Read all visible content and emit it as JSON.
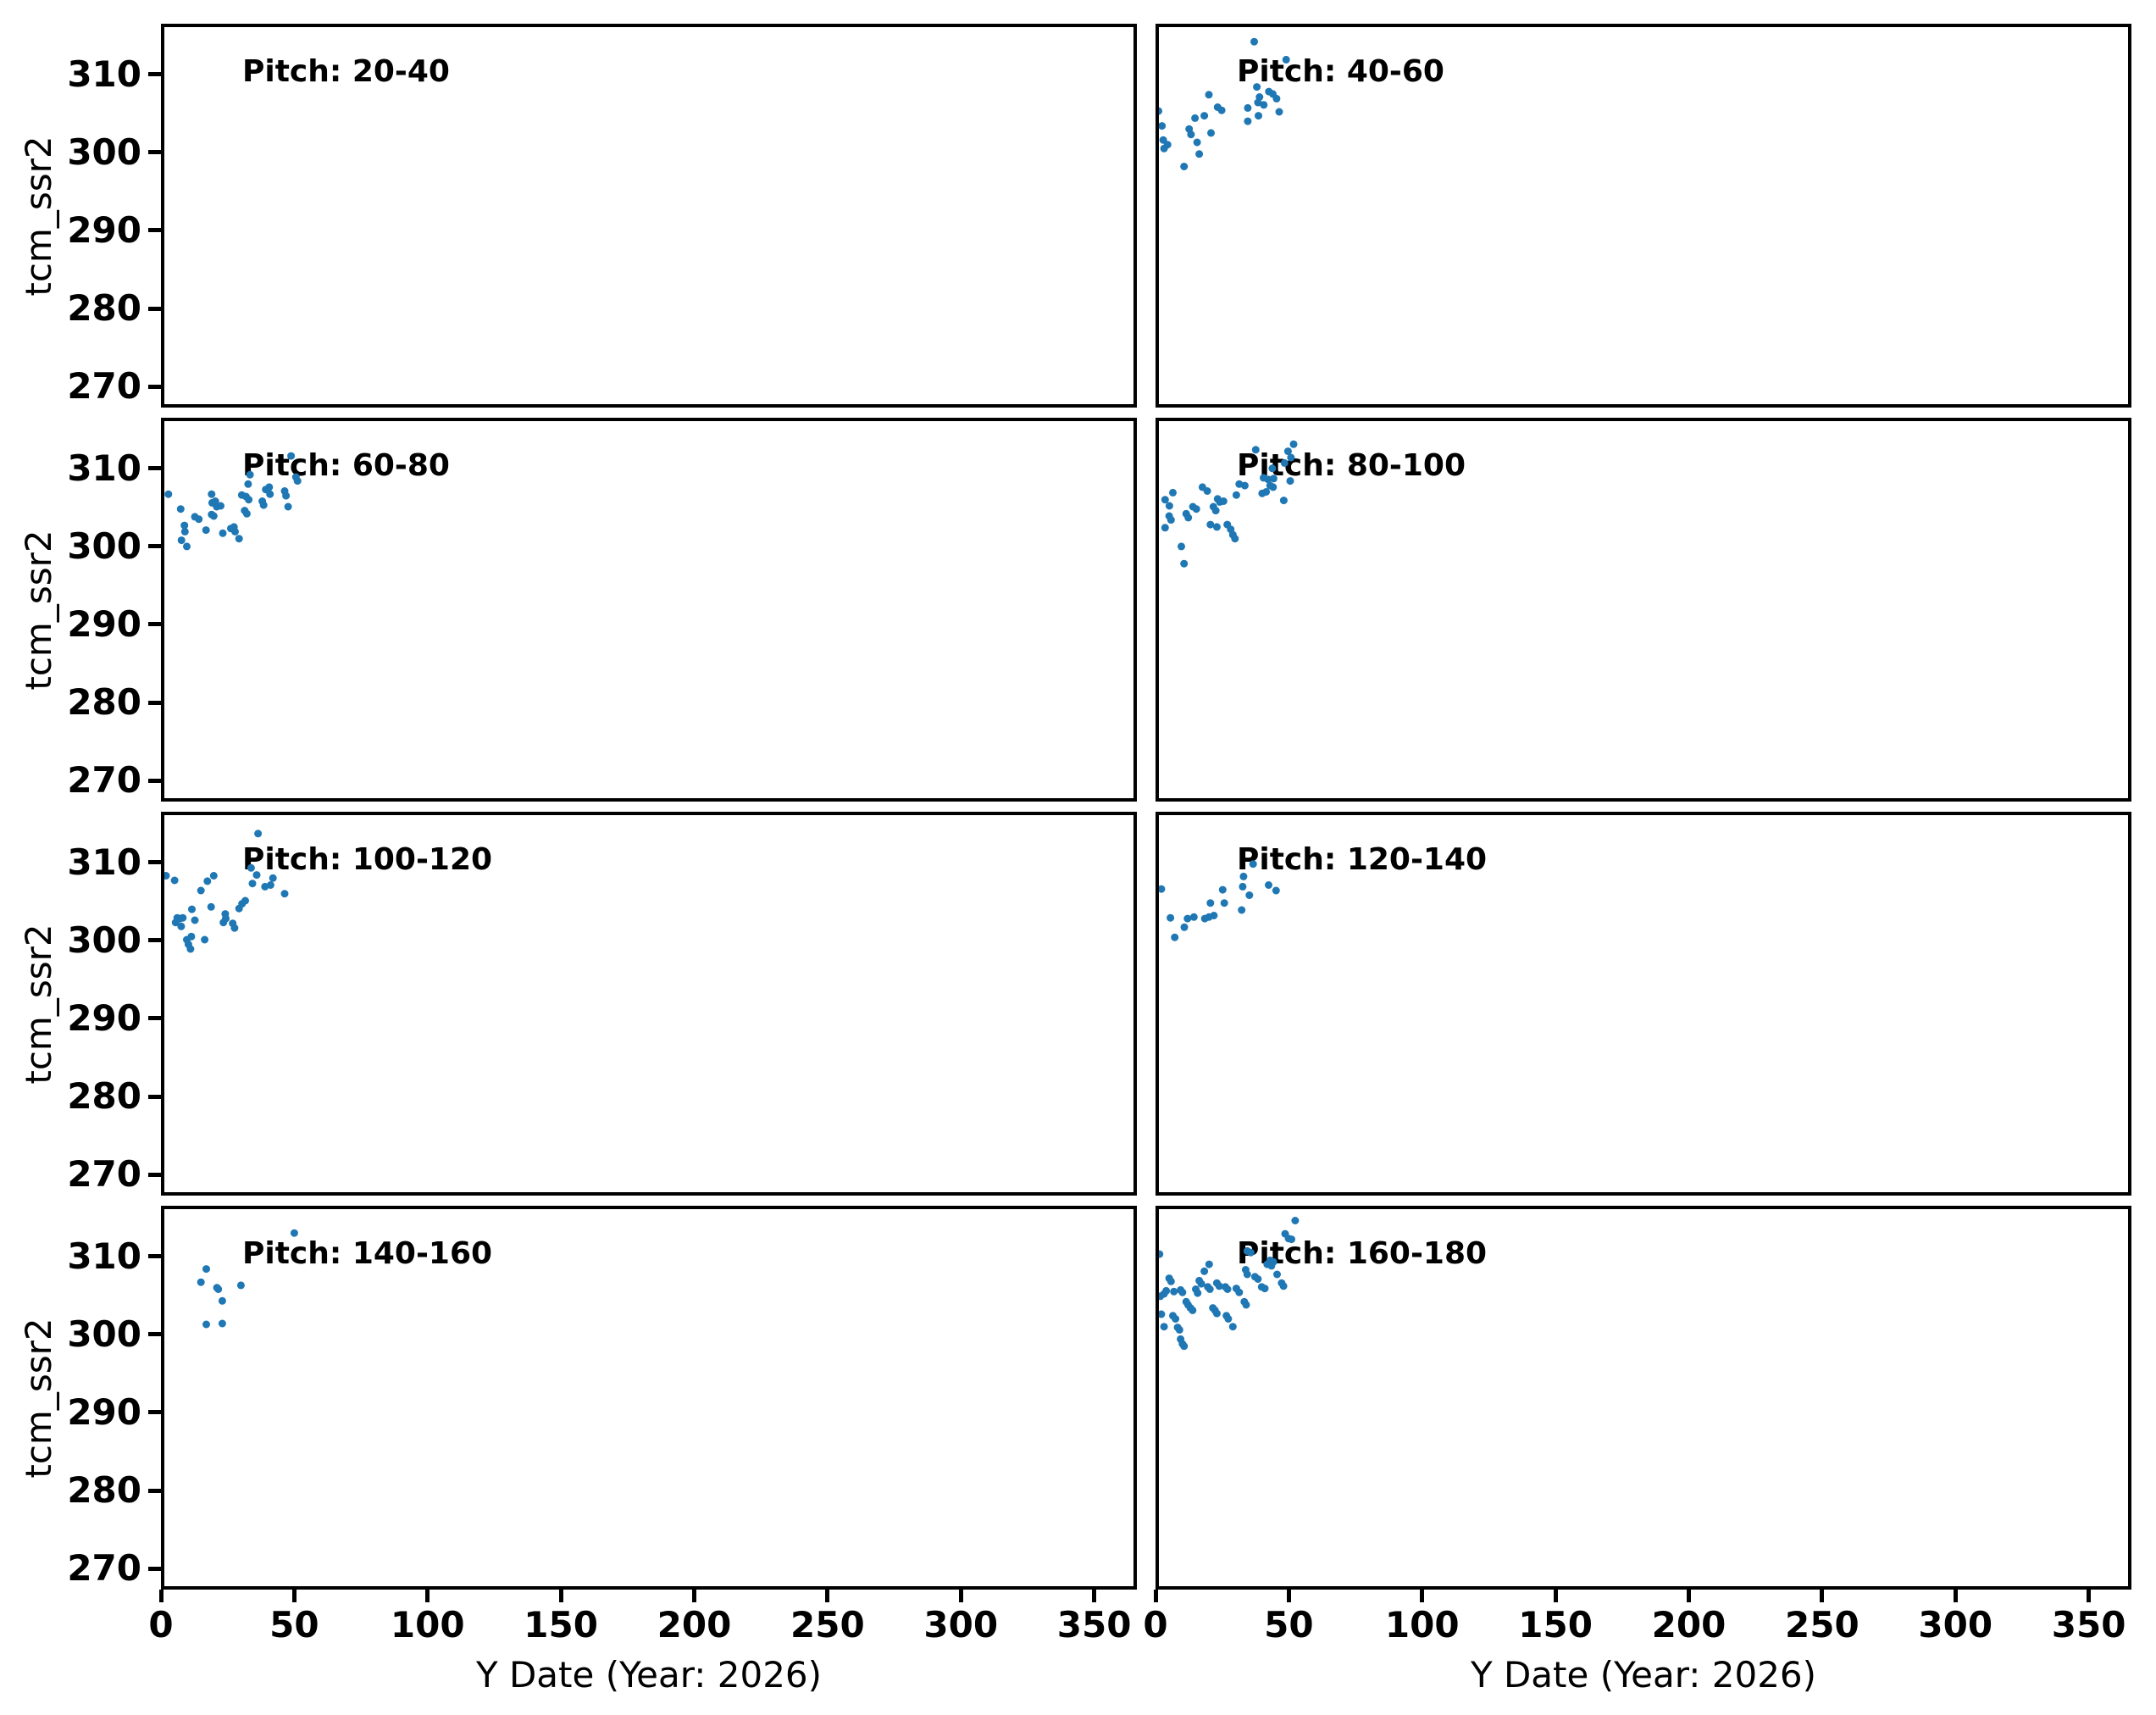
{
  "chart_data": {
    "type": "scatter",
    "layout": "4x2 facet grid, shared axes",
    "xlabel": "Y Date (Year: 2026)",
    "ylabel": "tcm_ssr2",
    "xlim": [
      0,
      366
    ],
    "ylim": [
      267.3,
      316.5
    ],
    "xticks": [
      0,
      50,
      100,
      150,
      200,
      250,
      300,
      350
    ],
    "yticks": [
      270,
      280,
      290,
      300,
      310
    ],
    "grid": "off",
    "marker_color": "#1f77b4",
    "marker_diameter_px": 9,
    "panels": [
      {
        "title": "Pitch: 20-40",
        "points": []
      },
      {
        "title": "Pitch: 40-60",
        "points": [
          [
            37,
            314.2
          ],
          [
            49,
            311.9
          ],
          [
            38,
            308.4
          ],
          [
            42.5,
            307.8
          ],
          [
            20,
            307.4
          ],
          [
            39,
            307.1
          ],
          [
            45.4,
            306.9
          ],
          [
            38.4,
            306.4
          ],
          [
            40.6,
            306.1
          ],
          [
            1.1,
            305.3
          ],
          [
            23.3,
            305.8
          ],
          [
            24.8,
            305.4
          ],
          [
            34.6,
            305.7
          ],
          [
            46.4,
            305.2
          ],
          [
            14.8,
            304.4
          ],
          [
            18.3,
            304.7
          ],
          [
            38.6,
            304.7
          ],
          [
            34.6,
            304.0
          ],
          [
            2.4,
            303.4
          ],
          [
            12.6,
            303.0
          ],
          [
            20.8,
            302.5
          ],
          [
            13.3,
            302.3
          ],
          [
            2.9,
            301.6
          ],
          [
            4.5,
            301.0
          ],
          [
            15.6,
            301.3
          ],
          [
            3.2,
            300.5
          ],
          [
            16.4,
            299.8
          ],
          [
            10.7,
            298.2
          ],
          [
            44,
            307.5
          ]
        ]
      },
      {
        "title": "Pitch: 60-80",
        "points": [
          [
            2.8,
            306.7
          ],
          [
            7.4,
            304.8
          ],
          [
            8.8,
            302.7
          ],
          [
            9,
            301.9
          ],
          [
            7.7,
            300.8
          ],
          [
            9.7,
            300.0
          ],
          [
            12.7,
            303.8
          ],
          [
            14.2,
            303.5
          ],
          [
            16.9,
            302.1
          ],
          [
            19,
            306.7
          ],
          [
            19.2,
            305.6
          ],
          [
            20.4,
            305.8
          ],
          [
            20.9,
            305.1
          ],
          [
            22.4,
            305.2
          ],
          [
            19,
            304.1
          ],
          [
            19.8,
            303.9
          ],
          [
            23.2,
            301.7
          ],
          [
            26.2,
            302.3
          ],
          [
            27.4,
            302.5
          ],
          [
            27.8,
            301.9
          ],
          [
            29.3,
            301.0
          ],
          [
            30.3,
            306.6
          ],
          [
            31.9,
            306.4
          ],
          [
            32.7,
            308.0
          ],
          [
            33.4,
            309.2
          ],
          [
            32.9,
            306.0
          ],
          [
            31.4,
            304.6
          ],
          [
            32.2,
            304.2
          ],
          [
            38.0,
            305.8
          ],
          [
            38.5,
            305.3
          ],
          [
            39.3,
            307.3
          ],
          [
            40.6,
            307.6
          ],
          [
            40.9,
            306.7
          ],
          [
            46.4,
            307.1
          ],
          [
            46.9,
            306.5
          ],
          [
            47.7,
            305.1
          ],
          [
            48.8,
            311.6
          ],
          [
            50.6,
            308.9
          ],
          [
            51.2,
            308.4
          ]
        ]
      },
      {
        "title": "Pitch: 80-100",
        "points": [
          [
            51.8,
            313.1
          ],
          [
            49.7,
            312.2
          ],
          [
            37.6,
            312.4
          ],
          [
            50.8,
            311.4
          ],
          [
            48.4,
            310.7
          ],
          [
            43.8,
            310.0
          ],
          [
            40.5,
            308.8
          ],
          [
            42.2,
            308.6
          ],
          [
            44.3,
            308.7
          ],
          [
            50.5,
            308.4
          ],
          [
            31.4,
            308.0
          ],
          [
            33.5,
            307.8
          ],
          [
            43.0,
            307.8
          ],
          [
            44.1,
            307.6
          ],
          [
            17.6,
            307.6
          ],
          [
            19.4,
            307.1
          ],
          [
            6.5,
            306.9
          ],
          [
            40,
            306.8
          ],
          [
            41.5,
            307.0
          ],
          [
            30.3,
            306.6
          ],
          [
            3.6,
            306.0
          ],
          [
            5.2,
            305.2
          ],
          [
            23.3,
            306.1
          ],
          [
            24.1,
            305.7
          ],
          [
            25.5,
            305.8
          ],
          [
            21.7,
            305.1
          ],
          [
            22.6,
            304.6
          ],
          [
            14,
            305.1
          ],
          [
            15.3,
            304.8
          ],
          [
            11.5,
            304.2
          ],
          [
            12.3,
            303.7
          ],
          [
            5.1,
            303.9
          ],
          [
            5.8,
            303.4
          ],
          [
            20.6,
            302.8
          ],
          [
            23,
            302.5
          ],
          [
            26.9,
            302.8
          ],
          [
            28.2,
            302.2
          ],
          [
            29,
            301.5
          ],
          [
            29.8,
            301.0
          ],
          [
            3.6,
            302.4
          ],
          [
            9.7,
            300.0
          ],
          [
            10.7,
            297.8
          ],
          [
            48.1,
            305.9
          ]
        ]
      },
      {
        "title": "Pitch: 100-120",
        "points": [
          [
            36.4,
            313.7
          ],
          [
            1.9,
            308.3
          ],
          [
            5.1,
            307.7
          ],
          [
            19.8,
            308.3
          ],
          [
            17.4,
            307.6
          ],
          [
            35.9,
            308.4
          ],
          [
            33.8,
            309.3
          ],
          [
            34.3,
            307.3
          ],
          [
            42,
            308.0
          ],
          [
            41.1,
            307.1
          ],
          [
            39,
            306.9
          ],
          [
            46.4,
            306.0
          ],
          [
            15,
            306.4
          ],
          [
            18.8,
            304.3
          ],
          [
            11.6,
            304.0
          ],
          [
            24.1,
            303.4
          ],
          [
            31.6,
            305.1
          ],
          [
            30.4,
            304.7
          ],
          [
            29.3,
            304.1
          ],
          [
            12.7,
            302.6
          ],
          [
            6.1,
            302.9
          ],
          [
            7.1,
            302.8
          ],
          [
            8.2,
            302.9
          ],
          [
            5.5,
            302.3
          ],
          [
            7.6,
            301.8
          ],
          [
            23.4,
            302.3
          ],
          [
            24.3,
            302.8
          ],
          [
            26.9,
            302.2
          ],
          [
            27.6,
            301.6
          ],
          [
            9.7,
            300.1
          ],
          [
            11.4,
            300.5
          ],
          [
            10.3,
            299.5
          ],
          [
            11.1,
            298.9
          ],
          [
            16.4,
            300.1
          ]
        ]
      },
      {
        "title": "Pitch: 120-140",
        "points": [
          [
            36.6,
            309.8
          ],
          [
            33,
            308.2
          ],
          [
            2.2,
            306.6
          ],
          [
            32.7,
            306.9
          ],
          [
            42.4,
            307.1
          ],
          [
            45.2,
            306.4
          ],
          [
            25.2,
            306.5
          ],
          [
            35.2,
            305.8
          ],
          [
            20.6,
            304.8
          ],
          [
            25.8,
            304.8
          ],
          [
            32.3,
            303.9
          ],
          [
            21.9,
            303.2
          ],
          [
            5.6,
            302.9
          ],
          [
            12,
            302.8
          ],
          [
            14.4,
            303.0
          ],
          [
            18.5,
            302.8
          ],
          [
            20,
            303.0
          ],
          [
            10.8,
            301.7
          ],
          [
            7.2,
            300.4
          ]
        ]
      },
      {
        "title": "Pitch: 140-160",
        "points": [
          [
            50,
            313.0
          ],
          [
            17,
            308.4
          ],
          [
            15,
            306.7
          ],
          [
            21,
            306.0
          ],
          [
            21.5,
            305.8
          ],
          [
            30,
            306.3
          ],
          [
            23,
            304.3
          ],
          [
            17,
            301.3
          ],
          [
            23,
            301.4
          ]
        ]
      },
      {
        "title": "Pitch: 160-180",
        "points": [
          [
            37.3,
            316.6
          ],
          [
            52.4,
            314.6
          ],
          [
            48.6,
            312.9
          ],
          [
            49.9,
            312.3
          ],
          [
            51,
            312.2
          ],
          [
            1.5,
            310.3
          ],
          [
            34.4,
            310.7
          ],
          [
            35.7,
            310.5
          ],
          [
            43,
            309.5
          ],
          [
            44.2,
            309.3
          ],
          [
            41.9,
            309.0
          ],
          [
            43.5,
            308.8
          ],
          [
            20.1,
            309.0
          ],
          [
            18.3,
            308.1
          ],
          [
            33.8,
            308.3
          ],
          [
            34.4,
            307.7
          ],
          [
            45.6,
            307.7
          ],
          [
            5.1,
            307.2
          ],
          [
            5.8,
            306.8
          ],
          [
            16.4,
            306.9
          ],
          [
            17.2,
            306.5
          ],
          [
            37.3,
            307.4
          ],
          [
            38.4,
            307.1
          ],
          [
            39.8,
            306.1
          ],
          [
            41,
            305.9
          ],
          [
            47.3,
            306.6
          ],
          [
            48,
            306.2
          ],
          [
            1.8,
            304.9
          ],
          [
            3.2,
            305.2
          ],
          [
            4,
            305.6
          ],
          [
            6.9,
            305.5
          ],
          [
            9.4,
            305.7
          ],
          [
            10.1,
            305.4
          ],
          [
            15.1,
            305.8
          ],
          [
            15.8,
            305.3
          ],
          [
            19.6,
            306.1
          ],
          [
            20.4,
            305.8
          ],
          [
            23,
            306.6
          ],
          [
            23.9,
            306.2
          ],
          [
            26.2,
            306.1
          ],
          [
            27,
            305.8
          ],
          [
            30.3,
            305.9
          ],
          [
            31.4,
            305.4
          ],
          [
            33.3,
            304.2
          ],
          [
            34,
            303.8
          ],
          [
            11.5,
            304.2
          ],
          [
            12.2,
            303.8
          ],
          [
            13.1,
            303.4
          ],
          [
            13.9,
            303.1
          ],
          [
            2.2,
            302.6
          ],
          [
            3.2,
            301.0
          ],
          [
            6.5,
            302.4
          ],
          [
            7.5,
            302.0
          ],
          [
            8.3,
            300.9
          ],
          [
            9,
            300.6
          ],
          [
            21.5,
            303.4
          ],
          [
            22.3,
            303.1
          ],
          [
            23,
            302.7
          ],
          [
            26.6,
            302.4
          ],
          [
            27.3,
            302.0
          ],
          [
            29,
            301.0
          ],
          [
            9.4,
            299.4
          ],
          [
            10.1,
            298.8
          ],
          [
            10.7,
            298.5
          ]
        ]
      }
    ]
  }
}
